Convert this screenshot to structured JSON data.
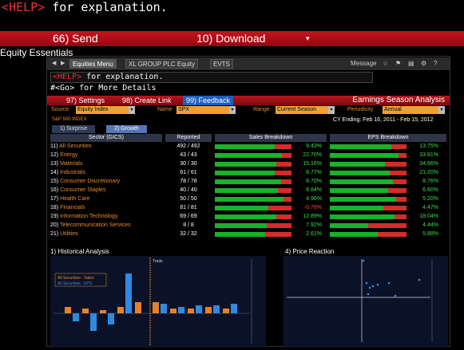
{
  "command_line": {
    "help_tag": "<HELP>",
    "text": " for explanation."
  },
  "top_bar": {
    "send": "66) Send",
    "download": "10) Download",
    "download_arrow": "▾"
  },
  "window_title": "Equity Essentials",
  "tab_row": {
    "tabs": [
      "Equities Menu",
      "XL GROUP PLC Equity",
      "EVTS"
    ],
    "message": "Message"
  },
  "help_line": {
    "help_tag": "<HELP>",
    "text": " for explanation."
  },
  "more_details": "#<Go> for More Details",
  "red_bar": {
    "settings": "97) Settings",
    "create_link": "98) Create Link",
    "feedback": "99) Feedback",
    "title": "Earnings Season Analysis"
  },
  "filters": {
    "source_label": "Source",
    "source_value": "Equity Index",
    "name_label": "Name",
    "name_value": "SPX",
    "range_label": "Range",
    "range_value": "Current Season",
    "periodicity_label": "Periodicity",
    "periodicity_value": "Annual"
  },
  "index_label": "S&P 500 INDEX",
  "cy_ending": "CY Ending: Feb 16, 2011 - Feb 15, 2012",
  "subtabs": [
    "1) Surprise",
    "2) Growth"
  ],
  "table": {
    "headers": [
      "Sector (GICS)",
      "Reported",
      "Sales Breakdown",
      "EPS Breakdown"
    ],
    "rows": [
      {
        "num": "11)",
        "name": "All Securities",
        "reported": "492 / 492",
        "sales_pct": "9.43%",
        "sales_green": 0.78,
        "eps_pct": "13.75%",
        "eps_green": 0.8
      },
      {
        "num": "12)",
        "name": "Energy",
        "reported": "43 / 43",
        "sales_pct": "22.70%",
        "sales_green": 0.88,
        "eps_pct": "33.81%",
        "eps_green": 0.9
      },
      {
        "num": "13)",
        "name": "Materials",
        "reported": "30 / 30",
        "sales_pct": "15.16%",
        "sales_green": 0.8,
        "eps_pct": "34.66%",
        "eps_green": 0.72
      },
      {
        "num": "14)",
        "name": "Industrials",
        "reported": "61 / 61",
        "sales_pct": "8.77%",
        "sales_green": 0.78,
        "eps_pct": "21.20%",
        "eps_green": 0.78
      },
      {
        "num": "15)",
        "name": "Consumer Discretionary",
        "reported": "78 / 78",
        "sales_pct": "8.70%",
        "sales_green": 0.86,
        "eps_pct": "8.76%",
        "eps_green": 0.82
      },
      {
        "num": "16)",
        "name": "Consumer Staples",
        "reported": "40 / 40",
        "sales_pct": "8.84%",
        "sales_green": 0.82,
        "eps_pct": "6.60%",
        "eps_green": 0.76
      },
      {
        "num": "17)",
        "name": "Health Care",
        "reported": "50 / 50",
        "sales_pct": "4.96%",
        "sales_green": 0.9,
        "eps_pct": "5.20%",
        "eps_green": 0.86
      },
      {
        "num": "18)",
        "name": "Financials",
        "reported": "81 / 81",
        "sales_pct": "-0.78%",
        "sales_green": 0.7,
        "eps_pct": "4.47%",
        "eps_green": 0.7
      },
      {
        "num": "19)",
        "name": "Information Technology",
        "reported": "69 / 69",
        "sales_pct": "12.89%",
        "sales_green": 0.8,
        "eps_pct": "18.04%",
        "eps_green": 0.84
      },
      {
        "num": "20)",
        "name": "Telecommunication Services",
        "reported": "8 / 8",
        "sales_pct": "7.92%",
        "sales_green": 0.68,
        "eps_pct": "4.44%",
        "eps_green": 0.5
      },
      {
        "num": "21)",
        "name": "Utilities",
        "reported": "32 / 32",
        "sales_pct": "2.61%",
        "sales_green": 0.66,
        "eps_pct": "5.88%",
        "eps_green": 0.62
      }
    ]
  },
  "historical": {
    "title": "Historical Analysis",
    "legend_sales": "All Securities : Sales",
    "legend_eps": "All Securities : EPS",
    "trade_label": "Trade"
  },
  "price_reaction": {
    "title": "Price Reaction"
  },
  "colors": {
    "accent": "#e88a2e",
    "red_bar": "#b8161c",
    "green_bar": "#17b32a",
    "red_fill": "#d92a2a",
    "pct_green": "#3ddc52",
    "pct_red": "#ff4040"
  }
}
